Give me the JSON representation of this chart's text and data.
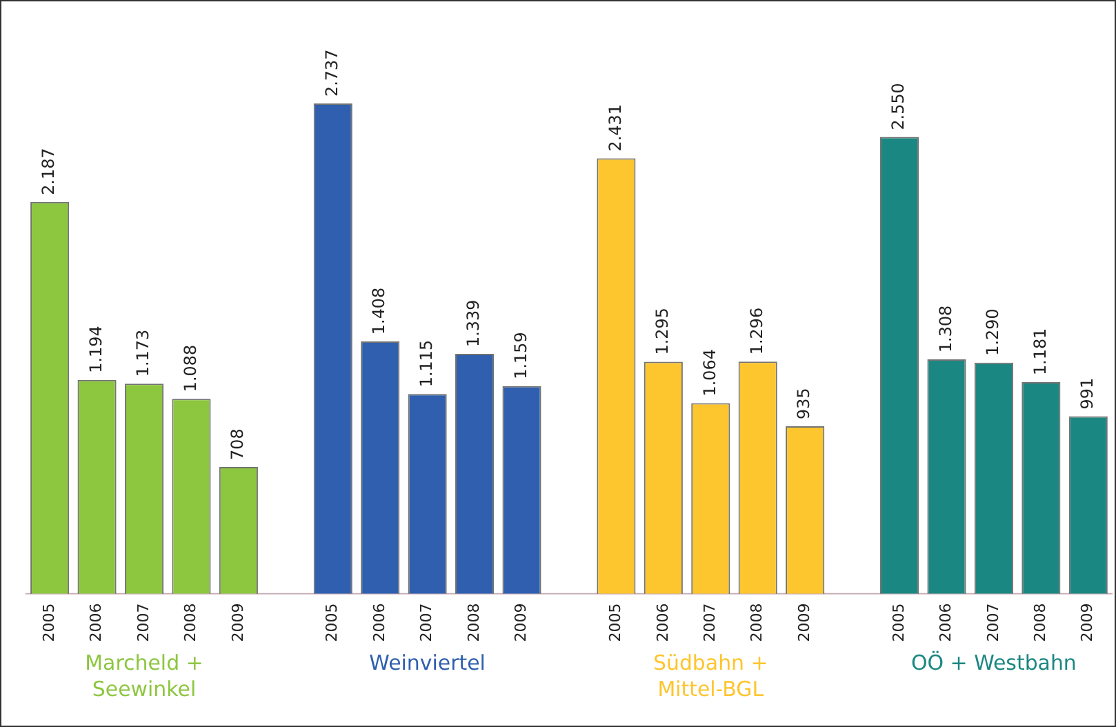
{
  "chart_data": {
    "type": "bar",
    "categories": [
      "2005",
      "2006",
      "2007",
      "2008",
      "2009",
      null,
      "2005",
      "2006",
      "2007",
      "2008",
      "2009",
      null,
      "2005",
      "2006",
      "2007",
      "2008",
      "2009",
      null,
      "2005",
      "2006",
      "2007",
      "2008",
      "2009"
    ],
    "series": [
      {
        "name": "Marcheld +\nSeewinkel",
        "color": "#8dc63f",
        "values": [
          2187,
          1194,
          1173,
          1088,
          708,
          null,
          null,
          null,
          null,
          null,
          null,
          null,
          null,
          null,
          null,
          null,
          null,
          null,
          null,
          null,
          null,
          null,
          null
        ],
        "value_labels": [
          "2.187",
          "1.194",
          "1.173",
          "1.088",
          "708",
          null,
          null,
          null,
          null,
          null,
          null,
          null,
          null,
          null,
          null,
          null,
          null,
          null,
          null,
          null,
          null,
          null,
          null
        ]
      },
      {
        "name": "Weinviertel",
        "color": "#2f5fae",
        "values": [
          null,
          null,
          null,
          null,
          null,
          null,
          2737,
          1408,
          1115,
          1339,
          1159,
          null,
          null,
          null,
          null,
          null,
          null,
          null,
          null,
          null,
          null,
          null,
          null
        ],
        "value_labels": [
          null,
          null,
          null,
          null,
          null,
          null,
          "2.737",
          "1.408",
          "1.115",
          "1.339",
          "1.159",
          null,
          null,
          null,
          null,
          null,
          null,
          null,
          null,
          null,
          null,
          null,
          null
        ]
      },
      {
        "name": "Südbahn +\nMittel-BGL",
        "color": "#fdc52e",
        "values": [
          null,
          null,
          null,
          null,
          null,
          null,
          null,
          null,
          null,
          null,
          null,
          null,
          2431,
          1295,
          1064,
          1296,
          935,
          null,
          null,
          null,
          null,
          null,
          null
        ],
        "value_labels": [
          null,
          null,
          null,
          null,
          null,
          null,
          null,
          null,
          null,
          null,
          null,
          null,
          "2.431",
          "1.295",
          "1.064",
          "1.296",
          "935",
          null,
          null,
          null,
          null,
          null,
          null
        ]
      },
      {
        "name": "OÖ + Westbahn",
        "color": "#1b8782",
        "values": [
          null,
          null,
          null,
          null,
          null,
          null,
          null,
          null,
          null,
          null,
          null,
          null,
          null,
          null,
          null,
          null,
          null,
          null,
          2550,
          1308,
          1290,
          1181,
          991
        ],
        "value_labels": [
          null,
          null,
          null,
          null,
          null,
          null,
          null,
          null,
          null,
          null,
          null,
          null,
          null,
          null,
          null,
          null,
          null,
          null,
          "2.550",
          "1.308",
          "1.290",
          "1.181",
          "991"
        ]
      }
    ],
    "tick_labels": "x",
    "grid": false,
    "legend": false
  }
}
